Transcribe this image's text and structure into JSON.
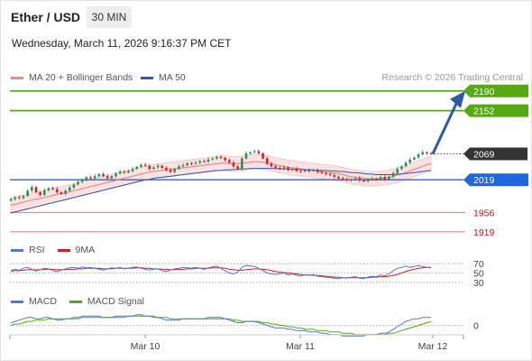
{
  "header": {
    "instrument": "Ether / USD",
    "timeframe_button": "30 MIN",
    "datetime": "Wednesday, March 11, 2026 9:16:37 PM CET"
  },
  "legend": {
    "ma20": "MA 20 + Bollinger Bands",
    "ma50": "MA 50",
    "research": "Research © 2026 Trading Central"
  },
  "colors": {
    "up": "#2e8b57",
    "down": "#cc2222",
    "ma20": "#ee7777",
    "ma50": "#3355aa",
    "bollinger": "#fbd8d8",
    "green_level": "#55aa11",
    "blue_level": "#2266dd",
    "red_level": "#ee8888",
    "current": "#333333",
    "arrow": "#2d5aa0",
    "rsi": "#5577cc",
    "rsi_ma": "#cc2222",
    "macd": "#5577cc",
    "macd_signal": "#55aa11"
  },
  "chart_data": [
    {
      "type": "candlestick",
      "panel": "price",
      "ylim": [
        1910,
        2200
      ],
      "x_ticks": [
        "Mar 10",
        "Mar 11",
        "Mar 12"
      ],
      "levels": [
        {
          "value": 2190,
          "label": "2190",
          "kind": "resistance",
          "color": "#55aa11"
        },
        {
          "value": 2152,
          "label": "2152",
          "kind": "resistance",
          "color": "#55aa11"
        },
        {
          "value": 2069,
          "label": "2069",
          "kind": "current",
          "color": "#333333"
        },
        {
          "value": 2019,
          "label": "2019",
          "kind": "pivot",
          "color": "#2266dd"
        },
        {
          "value": 1956,
          "label": "1956",
          "kind": "support",
          "color": "#ee8888"
        },
        {
          "value": 1919,
          "label": "1919",
          "kind": "support",
          "color": "#ee8888"
        }
      ],
      "close": [
        1982,
        1985,
        1984,
        1988,
        1998,
        2005,
        1995,
        1990,
        1999,
        2003,
        2001,
        1995,
        1992,
        1998,
        2004,
        2010,
        2015,
        2018,
        2024,
        2022,
        2026,
        2030,
        2026,
        2022,
        2026,
        2031,
        2035,
        2033,
        2036,
        2040,
        2044,
        2048,
        2046,
        2040,
        2043,
        2046,
        2042,
        2038,
        2034,
        2040,
        2045,
        2047,
        2051,
        2050,
        2052,
        2055,
        2054,
        2058,
        2060,
        2063,
        2061,
        2057,
        2052,
        2045,
        2040,
        2060,
        2070,
        2072,
        2074,
        2070,
        2060,
        2050,
        2045,
        2042,
        2040,
        2043,
        2038,
        2040,
        2036,
        2035,
        2037,
        2036,
        2038,
        2034,
        2032,
        2030,
        2028,
        2025,
        2022,
        2020,
        2018,
        2020,
        2022,
        2018,
        2016,
        2019,
        2021,
        2020,
        2024,
        2020,
        2025,
        2032,
        2040,
        2045,
        2052,
        2058,
        2062,
        2068,
        2072,
        2070,
        2069
      ],
      "ma20": [
        1970,
        1972,
        1974,
        1976,
        1978,
        1980,
        1982,
        1983,
        1985,
        1987,
        1989,
        1991,
        1992,
        1994,
        1996,
        1998,
        2000,
        2002,
        2004,
        2006,
        2008,
        2010,
        2012,
        2014,
        2016,
        2018,
        2020,
        2022,
        2024,
        2026,
        2028,
        2030,
        2032,
        2034,
        2035,
        2036,
        2037,
        2038,
        2039,
        2040,
        2041,
        2042,
        2043,
        2044,
        2045,
        2046,
        2047,
        2048,
        2049,
        2050,
        2051,
        2051,
        2050,
        2050,
        2050,
        2051,
        2052,
        2053,
        2054,
        2054,
        2053,
        2052,
        2050,
        2048,
        2046,
        2045,
        2043,
        2042,
        2041,
        2040,
        2039,
        2038,
        2037,
        2036,
        2035,
        2034,
        2033,
        2032,
        2031,
        2029,
        2027,
        2025,
        2024,
        2023,
        2022,
        2021,
        2021,
        2021,
        2022,
        2023,
        2024,
        2026,
        2028,
        2030,
        2033,
        2036,
        2039,
        2042,
        2045,
        2048,
        2050
      ],
      "ma50": [
        1955,
        1957,
        1959,
        1961,
        1963,
        1965,
        1967,
        1969,
        1971,
        1973,
        1975,
        1977,
        1979,
        1981,
        1983,
        1985,
        1987,
        1989,
        1991,
        1993,
        1995,
        1997,
        1999,
        2001,
        2003,
        2005,
        2007,
        2009,
        2011,
        2013,
        2015,
        2017,
        2019,
        2020,
        2022,
        2023,
        2024,
        2025,
        2026,
        2027,
        2028,
        2029,
        2030,
        2031,
        2032,
        2033,
        2034,
        2035,
        2036,
        2037,
        2037,
        2038,
        2038,
        2039,
        2039,
        2040,
        2040,
        2041,
        2041,
        2041,
        2041,
        2041,
        2041,
        2041,
        2040,
        2040,
        2040,
        2039,
        2039,
        2039,
        2038,
        2038,
        2038,
        2037,
        2037,
        2037,
        2036,
        2036,
        2035,
        2035,
        2034,
        2033,
        2033,
        2032,
        2031,
        2030,
        2030,
        2029,
        2029,
        2029,
        2029,
        2029,
        2030,
        2030,
        2031,
        2032,
        2033,
        2034,
        2035,
        2036,
        2037
      ],
      "projection": {
        "from": 2069,
        "to": 2190
      }
    },
    {
      "type": "line",
      "panel": "rsi",
      "title": "RSI",
      "ylim": [
        20,
        80
      ],
      "y_ticks": [
        70,
        50,
        30
      ],
      "series": [
        {
          "name": "RSI",
          "values": [
            55,
            58,
            56,
            60,
            62,
            58,
            54,
            57,
            60,
            59,
            55,
            53,
            56,
            59,
            61,
            62,
            60,
            63,
            61,
            62,
            60,
            58,
            56,
            59,
            61,
            60,
            62,
            59,
            60,
            62,
            63,
            60,
            58,
            56,
            58,
            59,
            55,
            53,
            56,
            59,
            60,
            62,
            61,
            60,
            62,
            60,
            58,
            61,
            63,
            65,
            60,
            55,
            50,
            48,
            52,
            62,
            66,
            65,
            64,
            60,
            55,
            50,
            48,
            47,
            48,
            50,
            46,
            48,
            45,
            44,
            46,
            45,
            47,
            43,
            42,
            41,
            40,
            39,
            38,
            40,
            39,
            41,
            42,
            39,
            38,
            41,
            43,
            42,
            46,
            44,
            48,
            55,
            60,
            62,
            65,
            62,
            64,
            66,
            64,
            62,
            61
          ]
        },
        {
          "name": "9MA",
          "values": [
            54,
            55,
            55,
            56,
            57,
            57,
            57,
            57,
            58,
            58,
            58,
            57,
            57,
            57,
            58,
            58,
            59,
            59,
            60,
            60,
            60,
            60,
            59,
            59,
            59,
            60,
            60,
            60,
            60,
            60,
            61,
            61,
            60,
            60,
            59,
            59,
            58,
            58,
            57,
            57,
            58,
            58,
            59,
            59,
            60,
            60,
            60,
            60,
            61,
            61,
            61,
            60,
            58,
            57,
            56,
            56,
            57,
            58,
            59,
            59,
            58,
            57,
            55,
            53,
            52,
            51,
            50,
            49,
            48,
            47,
            46,
            46,
            45,
            45,
            44,
            43,
            42,
            41,
            41,
            40,
            40,
            40,
            40,
            40,
            40,
            40,
            41,
            41,
            42,
            42,
            43,
            45,
            47,
            50,
            53,
            56,
            58,
            60,
            61,
            62,
            62
          ]
        }
      ]
    },
    {
      "type": "line",
      "panel": "macd",
      "title": "MACD",
      "ylim": [
        -12,
        12
      ],
      "y_ticks": [
        0
      ],
      "series": [
        {
          "name": "MACD",
          "values": [
            2,
            3,
            4,
            5,
            6,
            6,
            5,
            5,
            6,
            6,
            5,
            4,
            4,
            5,
            5,
            6,
            6,
            7,
            7,
            7,
            7,
            7,
            6,
            6,
            6,
            7,
            7,
            7,
            7,
            7,
            8,
            8,
            7,
            7,
            6,
            6,
            5,
            4,
            4,
            4,
            4,
            5,
            5,
            5,
            5,
            5,
            5,
            6,
            6,
            6,
            6,
            5,
            4,
            3,
            2,
            2,
            3,
            3,
            3,
            2,
            1,
            0,
            -1,
            -2,
            -2,
            -2,
            -3,
            -3,
            -4,
            -4,
            -4,
            -5,
            -5,
            -5,
            -6,
            -6,
            -7,
            -7,
            -7,
            -8,
            -8,
            -8,
            -8,
            -8,
            -8,
            -7,
            -7,
            -7,
            -6,
            -6,
            -5,
            -3,
            -1,
            1,
            3,
            4,
            5,
            5,
            6,
            6,
            6
          ]
        },
        {
          "name": "MACD Signal",
          "values": [
            0,
            1,
            1,
            2,
            3,
            3,
            4,
            4,
            4,
            5,
            5,
            5,
            5,
            5,
            5,
            5,
            5,
            6,
            6,
            6,
            6,
            6,
            6,
            6,
            6,
            6,
            6,
            6,
            7,
            7,
            7,
            7,
            7,
            7,
            7,
            6,
            6,
            6,
            5,
            5,
            5,
            5,
            5,
            5,
            5,
            5,
            5,
            5,
            5,
            5,
            5,
            5,
            5,
            4,
            4,
            3,
            3,
            3,
            3,
            3,
            2,
            2,
            1,
            1,
            0,
            0,
            -1,
            -1,
            -2,
            -2,
            -3,
            -3,
            -3,
            -4,
            -4,
            -4,
            -5,
            -5,
            -5,
            -6,
            -6,
            -6,
            -7,
            -7,
            -7,
            -7,
            -7,
            -7,
            -7,
            -7,
            -6,
            -6,
            -5,
            -4,
            -3,
            -2,
            -1,
            0,
            1,
            2,
            3
          ]
        }
      ]
    }
  ]
}
